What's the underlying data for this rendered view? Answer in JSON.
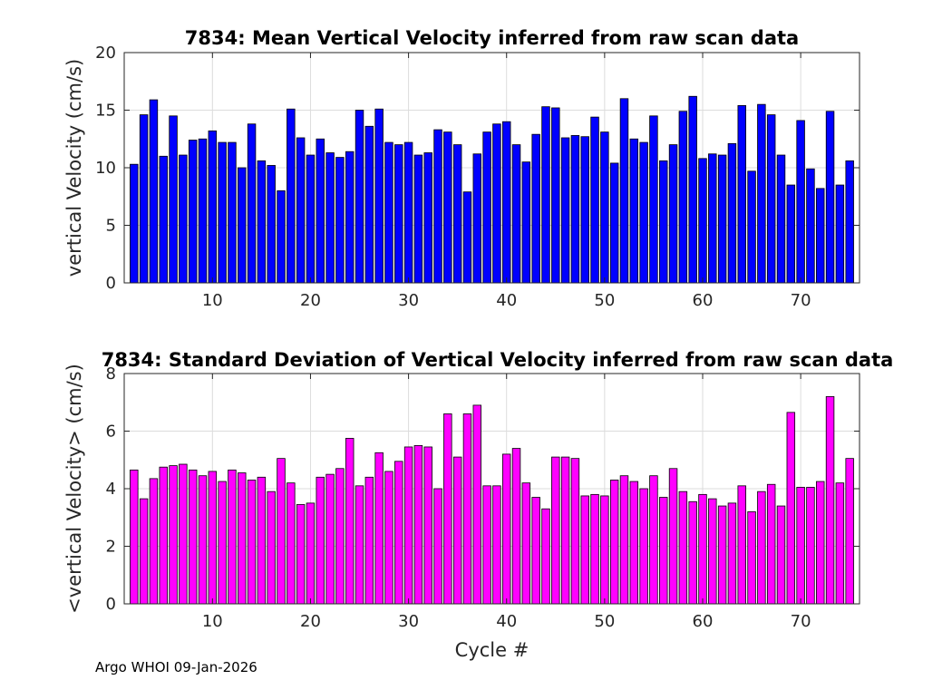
{
  "footer": "Argo WHOI 09-Jan-2026",
  "chart_data": [
    {
      "type": "bar",
      "title": "7834: Mean Vertical Velocity inferred from raw scan data",
      "xlabel": "",
      "ylabel": "vertical Velocity (cm/s)",
      "xlim": [
        1,
        76
      ],
      "ylim": [
        0,
        20
      ],
      "xticks": [
        10,
        20,
        30,
        40,
        50,
        60,
        70
      ],
      "yticks": [
        0,
        5,
        10,
        15,
        20
      ],
      "grid": true,
      "color": "#0000ff",
      "x": [
        2,
        3,
        4,
        5,
        6,
        7,
        8,
        9,
        10,
        11,
        12,
        13,
        14,
        15,
        16,
        17,
        18,
        19,
        20,
        21,
        22,
        23,
        24,
        25,
        26,
        27,
        28,
        29,
        30,
        31,
        32,
        33,
        34,
        35,
        36,
        37,
        38,
        39,
        40,
        41,
        42,
        43,
        44,
        45,
        46,
        47,
        48,
        49,
        50,
        51,
        52,
        53,
        54,
        55,
        56,
        57,
        58,
        59,
        60,
        61,
        62,
        63,
        64,
        65,
        66,
        67,
        68,
        69,
        70,
        71,
        72,
        73,
        74,
        75
      ],
      "values": [
        10.3,
        14.6,
        15.9,
        11.0,
        14.5,
        11.1,
        12.4,
        12.5,
        13.2,
        12.2,
        12.2,
        10.0,
        13.8,
        10.6,
        10.2,
        8.0,
        15.1,
        12.6,
        11.1,
        12.5,
        11.3,
        10.9,
        11.4,
        15.0,
        13.6,
        15.1,
        12.2,
        12.0,
        12.2,
        11.1,
        11.3,
        13.3,
        13.1,
        12.0,
        7.9,
        11.2,
        13.1,
        13.8,
        14.0,
        12.0,
        10.5,
        12.9,
        15.3,
        15.2,
        12.6,
        12.8,
        12.7,
        14.4,
        13.1,
        10.4,
        16.0,
        12.5,
        12.2,
        14.5,
        10.6,
        12.0,
        14.9,
        16.2,
        10.8,
        11.2,
        11.1,
        12.1,
        15.4,
        9.7,
        15.5,
        14.6,
        11.1,
        8.5,
        14.1,
        9.9,
        8.2,
        14.9,
        8.5,
        10.6
      ]
    },
    {
      "type": "bar",
      "title": "7834: Standard Deviation of Vertical Velocity inferred from raw scan data",
      "xlabel": "Cycle #",
      "ylabel": "<vertical Velocity> (cm/s)",
      "xlim": [
        1,
        76
      ],
      "ylim": [
        0,
        8
      ],
      "xticks": [
        10,
        20,
        30,
        40,
        50,
        60,
        70
      ],
      "yticks": [
        0,
        2,
        4,
        6,
        8
      ],
      "grid": true,
      "color": "#ff00ff",
      "x": [
        2,
        3,
        4,
        5,
        6,
        7,
        8,
        9,
        10,
        11,
        12,
        13,
        14,
        15,
        16,
        17,
        18,
        19,
        20,
        21,
        22,
        23,
        24,
        25,
        26,
        27,
        28,
        29,
        30,
        31,
        32,
        33,
        34,
        35,
        36,
        37,
        38,
        39,
        40,
        41,
        42,
        43,
        44,
        45,
        46,
        47,
        48,
        49,
        50,
        51,
        52,
        53,
        54,
        55,
        56,
        57,
        58,
        59,
        60,
        61,
        62,
        63,
        64,
        65,
        66,
        67,
        68,
        69,
        70,
        71,
        72,
        73,
        74,
        75
      ],
      "values": [
        4.65,
        3.65,
        4.35,
        4.75,
        4.8,
        4.85,
        4.65,
        4.45,
        4.6,
        4.25,
        4.65,
        4.55,
        4.3,
        4.4,
        3.9,
        5.05,
        4.2,
        3.45,
        3.5,
        4.4,
        4.5,
        4.7,
        5.75,
        4.1,
        4.4,
        5.25,
        4.6,
        4.95,
        5.45,
        5.5,
        5.45,
        4.0,
        6.6,
        5.1,
        6.6,
        6.9,
        4.1,
        4.1,
        5.2,
        5.4,
        4.2,
        3.7,
        3.3,
        5.1,
        5.1,
        5.05,
        3.75,
        3.8,
        3.75,
        4.3,
        4.45,
        4.25,
        4.0,
        4.45,
        3.7,
        4.7,
        3.9,
        3.55,
        3.8,
        3.65,
        3.4,
        3.5,
        4.1,
        3.2,
        3.9,
        4.15,
        3.4,
        6.65,
        4.05,
        4.05,
        4.25,
        7.2,
        4.2,
        5.05
      ]
    }
  ]
}
